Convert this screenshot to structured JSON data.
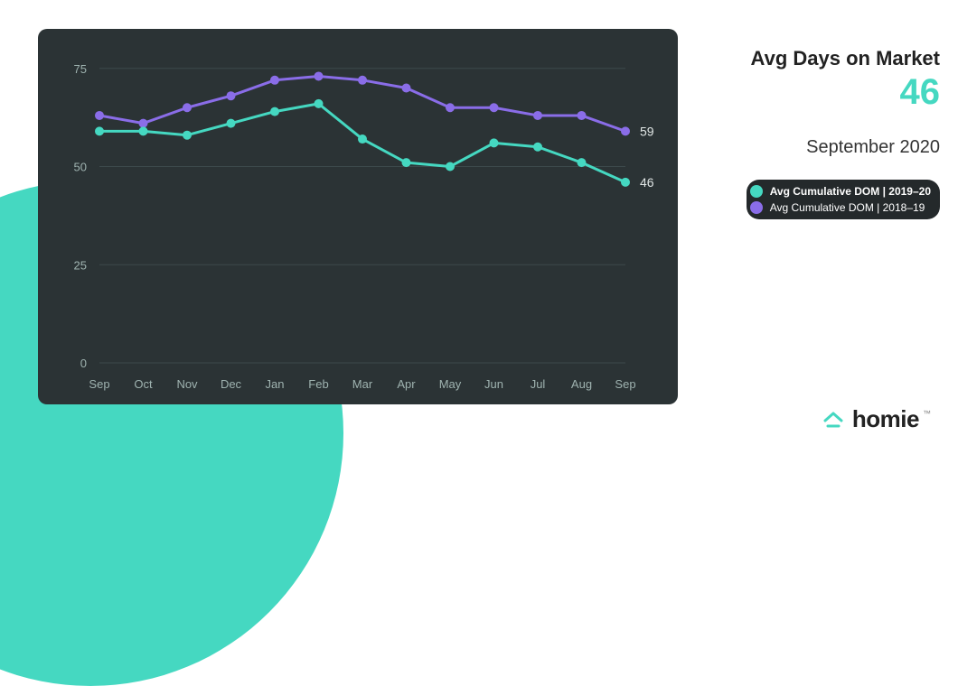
{
  "chart": {
    "type": "line",
    "panel_bg": "#2b3335",
    "grid_color": "#3d4a4c",
    "axis_label_color": "#9fb3b0",
    "end_label_color": "#e0e6e5",
    "line_width": 3,
    "marker_radius": 5,
    "categories": [
      "Sep",
      "Oct",
      "Nov",
      "Dec",
      "Jan",
      "Feb",
      "Mar",
      "Apr",
      "May",
      "Jun",
      "Jul",
      "Aug",
      "Sep"
    ],
    "y_ticks": [
      0,
      25,
      50,
      75
    ],
    "ylim": [
      0,
      80
    ],
    "series": [
      {
        "name": "Avg Cumulative DOM  |  2018–19",
        "color": "#8a6de8",
        "values": [
          63,
          61,
          65,
          68,
          72,
          73,
          72,
          70,
          65,
          65,
          63,
          63,
          59
        ],
        "end_label": "59"
      },
      {
        "name": "Avg Cumulative DOM  |  2019–20",
        "color": "#45d8c1",
        "values": [
          59,
          59,
          58,
          61,
          64,
          66,
          57,
          51,
          50,
          56,
          55,
          51,
          46
        ],
        "end_label": "46",
        "bold": true
      }
    ]
  },
  "headline": {
    "title": "Avg Days on Market",
    "value": "46",
    "value_color": "#45d8c1",
    "date": "September 2020"
  },
  "legend": [
    {
      "label": "Avg Cumulative DOM  |  2019–20",
      "color": "#45d8c1",
      "bold": true
    },
    {
      "label": "Avg Cumulative DOM  |  2018–19",
      "color": "#8a6de8",
      "bold": false
    }
  ],
  "brand": {
    "name": "homie",
    "logo_color": "#45d8c1",
    "tm": "™"
  },
  "decor": {
    "blob_color": "#45d8c1"
  }
}
